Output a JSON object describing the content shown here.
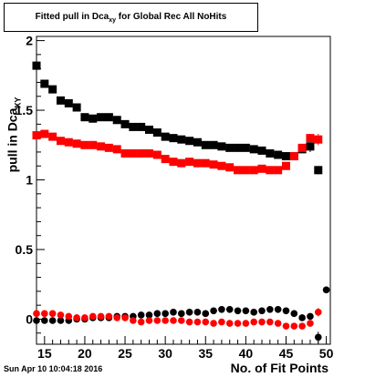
{
  "page": {
    "title_main": "Fitted pull in Dca",
    "title_sub": "xy",
    "title_rest": " for Global Rec All NoHits",
    "ylabel_main": "pull in Dca",
    "ylabel_sub": "XY",
    "xlabel": "No. of Fit Points",
    "datestamp": "Sun Apr 10 10:04:18 2016"
  },
  "chart_data": {
    "type": "scatter",
    "title": "Fitted pull in Dca_xy for Global Rec All NoHits",
    "xlabel": "No. of Fit Points",
    "ylabel": "pull in Dca_XY",
    "xlim": [
      14,
      50.5
    ],
    "ylim": [
      -0.18,
      2.03
    ],
    "xticks": [
      "15",
      "20",
      "25",
      "30",
      "35",
      "40",
      "45",
      "50"
    ],
    "yticks": [
      "0",
      "0.5",
      "1",
      "1.5",
      "2"
    ],
    "x_tick_values": [
      15,
      20,
      25,
      30,
      35,
      40,
      45,
      50
    ],
    "y_tick_values": [
      0,
      0.5,
      1,
      1.5,
      2
    ],
    "series": [
      {
        "color": "#000000",
        "marker": "square",
        "x": [
          14,
          15,
          16,
          17,
          18,
          19,
          20,
          21,
          22,
          23,
          24,
          25,
          26,
          27,
          28,
          29,
          30,
          31,
          32,
          33,
          34,
          35,
          36,
          37,
          38,
          39,
          40,
          41,
          42,
          43,
          44,
          45,
          46,
          47,
          48,
          49
        ],
        "y": [
          1.82,
          1.69,
          1.65,
          1.57,
          1.55,
          1.52,
          1.45,
          1.44,
          1.45,
          1.45,
          1.43,
          1.4,
          1.38,
          1.38,
          1.36,
          1.34,
          1.31,
          1.3,
          1.29,
          1.28,
          1.27,
          1.25,
          1.25,
          1.24,
          1.23,
          1.23,
          1.23,
          1.22,
          1.21,
          1.19,
          1.18,
          1.17,
          1.17,
          1.22,
          1.24,
          1.07
        ],
        "err": [
          0,
          0,
          0,
          0,
          0,
          0,
          0,
          0,
          0,
          0,
          0,
          0,
          0,
          0,
          0,
          0,
          0,
          0,
          0,
          0,
          0,
          0,
          0,
          0,
          0,
          0,
          0,
          0,
          0,
          0,
          0,
          0,
          0,
          0,
          0.04,
          0.03
        ]
      },
      {
        "color": "#ff0000",
        "marker": "square",
        "x": [
          14,
          15,
          16,
          17,
          18,
          19,
          20,
          21,
          22,
          23,
          24,
          25,
          26,
          27,
          28,
          29,
          30,
          31,
          32,
          33,
          34,
          35,
          36,
          37,
          38,
          39,
          40,
          41,
          42,
          43,
          44,
          45,
          46,
          47,
          48,
          49
        ],
        "y": [
          1.32,
          1.33,
          1.31,
          1.28,
          1.27,
          1.26,
          1.25,
          1.25,
          1.24,
          1.23,
          1.22,
          1.19,
          1.19,
          1.19,
          1.19,
          1.18,
          1.15,
          1.13,
          1.12,
          1.13,
          1.12,
          1.12,
          1.11,
          1.1,
          1.09,
          1.07,
          1.07,
          1.07,
          1.08,
          1.07,
          1.07,
          1.1,
          1.17,
          1.23,
          1.3,
          1.29
        ],
        "err": [
          0,
          0,
          0,
          0,
          0,
          0,
          0,
          0,
          0,
          0,
          0,
          0,
          0,
          0,
          0,
          0,
          0,
          0,
          0,
          0,
          0,
          0,
          0,
          0,
          0,
          0,
          0,
          0,
          0,
          0,
          0,
          0,
          0,
          0,
          0.03,
          0.04
        ]
      },
      {
        "color": "#000000",
        "marker": "circle",
        "x": [
          14,
          15,
          16,
          17,
          18,
          19,
          20,
          21,
          22,
          23,
          24,
          25,
          26,
          27,
          28,
          29,
          30,
          31,
          32,
          33,
          34,
          35,
          36,
          37,
          38,
          39,
          40,
          41,
          42,
          43,
          44,
          45,
          46,
          47,
          48,
          49,
          50
        ],
        "y": [
          -0.01,
          -0.01,
          -0.01,
          -0.01,
          -0.01,
          0.0,
          0.0,
          0.01,
          0.01,
          0.01,
          0.02,
          0.02,
          0.02,
          0.03,
          0.03,
          0.04,
          0.04,
          0.05,
          0.04,
          0.05,
          0.05,
          0.04,
          0.06,
          0.07,
          0.07,
          0.06,
          0.06,
          0.05,
          0.06,
          0.07,
          0.07,
          0.06,
          0.04,
          0.01,
          0.02,
          -0.13,
          0.21
        ],
        "err": [
          0,
          0,
          0,
          0,
          0,
          0,
          0,
          0,
          0,
          0,
          0,
          0,
          0,
          0,
          0,
          0,
          0,
          0,
          0,
          0,
          0,
          0,
          0,
          0,
          0,
          0,
          0,
          0,
          0,
          0,
          0,
          0,
          0,
          0,
          0,
          0.04,
          0.02
        ]
      },
      {
        "color": "#ff0000",
        "marker": "circle",
        "x": [
          14,
          15,
          16,
          17,
          18,
          19,
          20,
          21,
          22,
          23,
          24,
          25,
          26,
          27,
          28,
          29,
          30,
          31,
          32,
          33,
          34,
          35,
          36,
          37,
          38,
          39,
          40,
          41,
          42,
          43,
          44,
          45,
          46,
          47,
          48,
          49
        ],
        "y": [
          0.04,
          0.04,
          0.04,
          0.03,
          0.02,
          0.01,
          0.01,
          0.02,
          0.02,
          0.02,
          0.01,
          0.01,
          -0.01,
          -0.02,
          -0.01,
          -0.01,
          -0.01,
          -0.01,
          -0.01,
          -0.02,
          -0.02,
          -0.02,
          -0.03,
          -0.02,
          -0.03,
          -0.03,
          -0.03,
          -0.02,
          -0.02,
          -0.02,
          -0.03,
          -0.05,
          -0.05,
          -0.05,
          -0.03,
          0.05
        ],
        "err": [
          0,
          0,
          0,
          0,
          0,
          0,
          0,
          0,
          0,
          0,
          0,
          0,
          0,
          0,
          0,
          0,
          0,
          0,
          0,
          0,
          0,
          0,
          0,
          0,
          0,
          0,
          0,
          0,
          0,
          0,
          0,
          0,
          0,
          0,
          0,
          0.03
        ]
      }
    ]
  }
}
